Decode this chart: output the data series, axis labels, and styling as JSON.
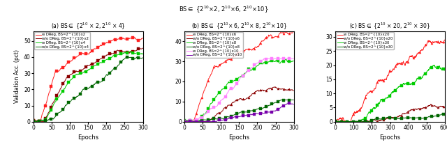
{
  "super_title": "BS\\in {2^{10}\\times 2, 2^{10}\\times 6, 2^{10}\\times 10}",
  "ylabel": "Validation Acc. (pct)",
  "xlabel": "Epochs",
  "panel_a": {
    "xlim": [
      0,
      300
    ],
    "ylim": [
      0,
      56
    ],
    "yticks": [
      0,
      10,
      20,
      30,
      40,
      50
    ],
    "title": "(a) BS\\in {2^{10} \\times 2, 2^{10} \\times 4}",
    "series": [
      {
        "label": "w DReg, BS=2^{10}x2",
        "color": "#ff2020",
        "marker": "s",
        "final": 53,
        "knee": 60,
        "noise": 1.5
      },
      {
        "label": "w/o DReg, BS=2^{10}x2",
        "color": "#8b0000",
        "marker": "s",
        "final": 50,
        "knee": 90,
        "noise": 1.2
      },
      {
        "label": "w DReg, BS=2^{10}x4",
        "color": "#00cc00",
        "marker": "s",
        "final": 46,
        "knee": 100,
        "noise": 1.4
      },
      {
        "label": "w/o DReg, BS=2^{10}x4",
        "color": "#006600",
        "marker": "s",
        "final": 37,
        "knee": 180,
        "noise": 1.3
      }
    ]
  },
  "panel_b": {
    "xlim": [
      0,
      300
    ],
    "ylim": [
      0,
      45
    ],
    "yticks": [
      0,
      10,
      20,
      30,
      40
    ],
    "title": "(b) BS\\in {2^{10}\\times 6, 2^{10}\\times 8, 2^{10}\\times 10}",
    "series": [
      {
        "label": "w DReg, BS=2^{10}x6",
        "color": "#ff2020",
        "marker": "^",
        "final": 42,
        "knee": 80,
        "noise": 1.5
      },
      {
        "label": "w/o DReg, BS=2^{10}x6",
        "color": "#8b0000",
        "marker": "^",
        "final": 22,
        "knee": 150,
        "noise": 1.2
      },
      {
        "label": "w DReg, BS=2^{10}x8",
        "color": "#00cc00",
        "marker": "s",
        "final": 35,
        "knee": 120,
        "noise": 1.3
      },
      {
        "label": "w/o DReg, BS=2^{10}x8",
        "color": "#006600",
        "marker": "s",
        "final": 10,
        "knee": 220,
        "noise": 0.6
      },
      {
        "label": "w DReg, BS=2^{10}x10",
        "color": "#ff80ff",
        "marker": "s",
        "final": 29,
        "knee": 160,
        "noise": 1.4
      },
      {
        "label": "w/o DReg, BS=2^{10}x10",
        "color": "#7700aa",
        "marker": "s",
        "final": 11,
        "knee": 240,
        "noise": 0.7
      }
    ]
  },
  "panel_c": {
    "xlim": [
      0,
      600
    ],
    "ylim": [
      0,
      32
    ],
    "yticks": [
      0,
      5,
      10,
      15,
      20,
      25,
      30
    ],
    "title": "(c) BS\\in {2^{10} \\times 20, 2^{10} \\times 30}",
    "series": [
      {
        "label": "w DReg, BS=2^{10}x20",
        "color": "#ff2020",
        "marker": "^",
        "final": 31,
        "knee": 250,
        "noise": 1.2
      },
      {
        "label": "w/o DReg, BS=2^{10}x20",
        "color": "#8b0000",
        "marker": "^",
        "final": 7,
        "knee": 450,
        "noise": 0.5
      },
      {
        "label": "w DReg, BS=2^{10}x30",
        "color": "#00cc00",
        "marker": "s",
        "final": 21,
        "knee": 350,
        "noise": 1.0
      },
      {
        "label": "w/o DReg, BS=2^{10}x30",
        "color": "#006600",
        "marker": "s",
        "final": 3,
        "knee": 500,
        "noise": 0.3
      }
    ]
  }
}
